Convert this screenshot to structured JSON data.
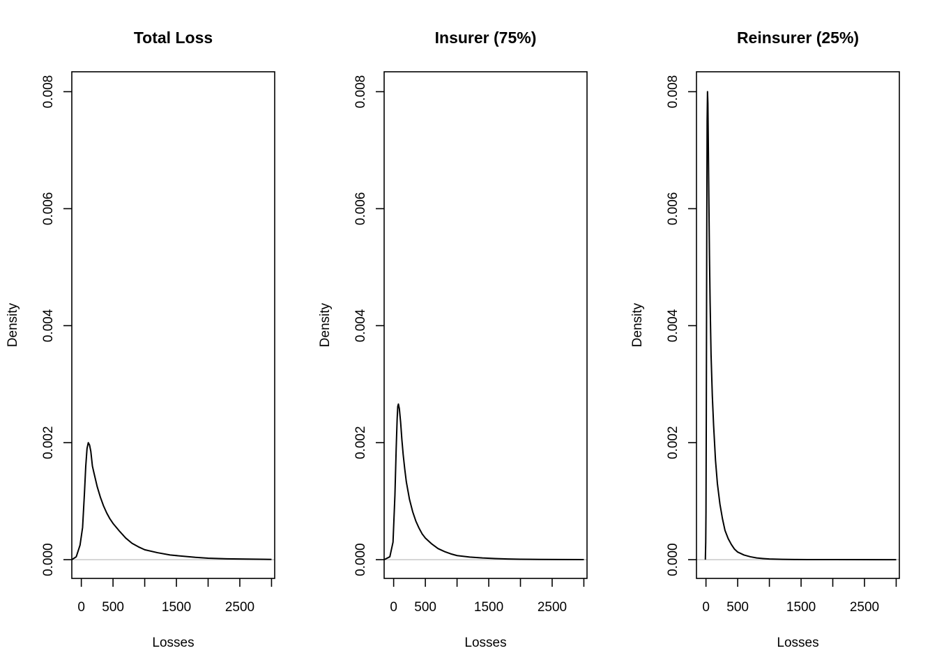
{
  "chart_data": [
    {
      "type": "line",
      "title": "Total Loss",
      "xlabel": "Losses",
      "ylabel": "Density",
      "xlim": [
        -150,
        3050
      ],
      "ylim": [
        -0.00032,
        0.00834
      ],
      "xticks": [
        0,
        500,
        1000,
        1500,
        2000,
        2500,
        3000
      ],
      "xtick_labels": [
        "0",
        "500",
        "",
        "1500",
        "",
        "2500",
        ""
      ],
      "yticks": [
        0,
        0.002,
        0.004,
        0.006,
        0.008
      ],
      "ytick_labels": [
        "0.000",
        "0.002",
        "0.004",
        "0.006",
        "0.008"
      ],
      "grid": false,
      "baseline": 0,
      "x": [
        -150,
        -80,
        -20,
        20,
        50,
        70,
        90,
        110,
        130,
        150,
        175,
        200,
        250,
        300,
        350,
        400,
        450,
        500,
        600,
        700,
        800,
        900,
        1000,
        1200,
        1400,
        1600,
        1800,
        2000,
        2300,
        2600,
        3000
      ],
      "y": [
        0,
        5e-05,
        0.00025,
        0.00055,
        0.00115,
        0.0016,
        0.0019,
        0.002,
        0.00196,
        0.00185,
        0.0016,
        0.00148,
        0.00125,
        0.00107,
        0.00092,
        0.0008,
        0.0007,
        0.00062,
        0.00049,
        0.00037,
        0.00028,
        0.00022,
        0.00017,
        0.00012,
        8e-05,
        6e-05,
        4e-05,
        2.5e-05,
        1.5e-05,
        1e-05,
        5e-06
      ]
    },
    {
      "type": "line",
      "title": "Insurer (75%)",
      "xlabel": "Losses",
      "ylabel": "Density",
      "xlim": [
        -150,
        3050
      ],
      "ylim": [
        -0.00032,
        0.00834
      ],
      "xticks": [
        0,
        500,
        1000,
        1500,
        2000,
        2500,
        3000
      ],
      "xtick_labels": [
        "0",
        "500",
        "",
        "1500",
        "",
        "2500",
        ""
      ],
      "yticks": [
        0,
        0.002,
        0.004,
        0.006,
        0.008
      ],
      "ytick_labels": [
        "0.000",
        "0.002",
        "0.004",
        "0.006",
        "0.008"
      ],
      "grid": false,
      "baseline": 0,
      "x": [
        -150,
        -60,
        -10,
        20,
        40,
        55,
        65,
        75,
        90,
        110,
        130,
        150,
        175,
        200,
        250,
        300,
        350,
        400,
        450,
        500,
        600,
        700,
        800,
        900,
        1000,
        1200,
        1400,
        1600,
        1800,
        2000,
        2300,
        2600,
        3000
      ],
      "y": [
        0,
        5e-05,
        0.0003,
        0.0011,
        0.0019,
        0.0024,
        0.00262,
        0.00266,
        0.00258,
        0.00235,
        0.00205,
        0.0018,
        0.00155,
        0.00133,
        0.00103,
        0.00082,
        0.00066,
        0.00054,
        0.00044,
        0.00037,
        0.00027,
        0.00019,
        0.00014,
        0.0001,
        7e-05,
        4.5e-05,
        3e-05,
        2e-05,
        1.2e-05,
        8e-06,
        5e-06,
        3e-06,
        2e-06
      ]
    },
    {
      "type": "line",
      "title": "Reinsurer (25%)",
      "xlabel": "Losses",
      "ylabel": "Density",
      "xlim": [
        -150,
        3050
      ],
      "ylim": [
        -0.00032,
        0.00834
      ],
      "xticks": [
        0,
        500,
        1000,
        1500,
        2000,
        2500,
        3000
      ],
      "xtick_labels": [
        "0",
        "500",
        "",
        "1500",
        "",
        "2500",
        ""
      ],
      "yticks": [
        0,
        0.002,
        0.004,
        0.006,
        0.008
      ],
      "ytick_labels": [
        "0.000",
        "0.002",
        "0.004",
        "0.006",
        "0.008"
      ],
      "grid": false,
      "baseline": 0,
      "x": [
        -10,
        -4,
        0,
        5,
        12,
        18,
        24,
        30,
        36,
        45,
        55,
        65,
        80,
        100,
        120,
        150,
        180,
        220,
        260,
        300,
        350,
        400,
        450,
        500,
        600,
        700,
        800,
        900,
        1000,
        1200,
        1400,
        1600,
        2000,
        3000
      ],
      "y": [
        0,
        0.0003,
        0.0008,
        0.0025,
        0.0055,
        0.0075,
        0.008,
        0.0078,
        0.0072,
        0.0062,
        0.0052,
        0.0044,
        0.0035,
        0.0028,
        0.0023,
        0.0017,
        0.0013,
        0.00095,
        0.0007,
        0.0005,
        0.00036,
        0.00026,
        0.00018,
        0.00013,
        8e-05,
        5e-05,
        3e-05,
        2e-05,
        1.2e-05,
        6e-06,
        3e-06,
        2e-06,
        1e-06,
        0
      ]
    }
  ]
}
